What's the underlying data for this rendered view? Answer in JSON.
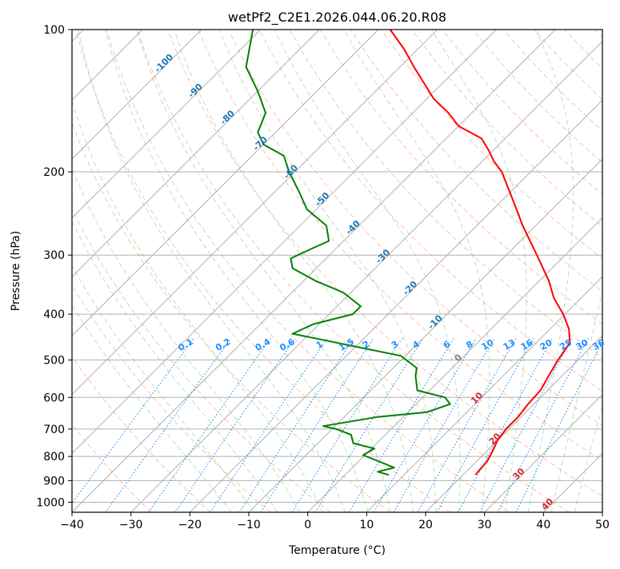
{
  "chart_data": {
    "type": "skew-t",
    "title": "wetPf2_C2E1.2026.044.06.20.R08",
    "xlabel": "Temperature (°C)",
    "ylabel": "Pressure (hPa)",
    "xlim": [
      -40,
      50
    ],
    "ylim_hpa": [
      1050,
      100
    ],
    "x_ticks": [
      -40,
      -30,
      -20,
      -10,
      0,
      10,
      20,
      30,
      40,
      50
    ],
    "x_tick_labels": [
      "−40",
      "−30",
      "−20",
      "−10",
      "0",
      "10",
      "20",
      "30",
      "40",
      "50"
    ],
    "y_ticks": [
      100,
      200,
      300,
      400,
      500,
      600,
      700,
      800,
      900,
      1000
    ],
    "y_tick_labels": [
      "100",
      "200",
      "300",
      "400",
      "500",
      "600",
      "700",
      "800",
      "900",
      "1000"
    ],
    "grid": true,
    "series": [
      {
        "name": "temperature",
        "color": "#ff0000",
        "points_p_t": [
          [
            875,
            22.1
          ],
          [
            860,
            22.0
          ],
          [
            820,
            21.8
          ],
          [
            780,
            21.0
          ],
          [
            740,
            20.0
          ],
          [
            700,
            19.5
          ],
          [
            660,
            19.5
          ],
          [
            620,
            19.0
          ],
          [
            580,
            18.8
          ],
          [
            540,
            17.7
          ],
          [
            500,
            16.6
          ],
          [
            460,
            15.7
          ],
          [
            430,
            13.2
          ],
          [
            400,
            9.7
          ],
          [
            370,
            5.4
          ],
          [
            340,
            1.6
          ],
          [
            300,
            -4.8
          ],
          [
            260,
            -12.2
          ],
          [
            230,
            -18.1
          ],
          [
            200,
            -24.9
          ],
          [
            190,
            -28.0
          ],
          [
            180,
            -30.8
          ],
          [
            170,
            -34.0
          ],
          [
            160,
            -40.0
          ],
          [
            150,
            -44.0
          ],
          [
            140,
            -48.9
          ],
          [
            120,
            -57.6
          ],
          [
            110,
            -62.3
          ],
          [
            100,
            -68.0
          ]
        ]
      },
      {
        "name": "dewpoint",
        "color": "#008000",
        "points_p_t": [
          [
            875,
            7.4
          ],
          [
            862,
            5.0
          ],
          [
            845,
            7.1
          ],
          [
            820,
            3.5
          ],
          [
            795,
            -0.3
          ],
          [
            770,
            0.5
          ],
          [
            750,
            -4.0
          ],
          [
            720,
            -5.8
          ],
          [
            700,
            -9.3
          ],
          [
            690,
            -12.0
          ],
          [
            660,
            -4.3
          ],
          [
            645,
            3.2
          ],
          [
            620,
            5.8
          ],
          [
            600,
            3.8
          ],
          [
            580,
            -2.1
          ],
          [
            540,
            -4.9
          ],
          [
            520,
            -6.0
          ],
          [
            490,
            -10.8
          ],
          [
            470,
            -19.4
          ],
          [
            455,
            -26.0
          ],
          [
            440,
            -32.9
          ],
          [
            420,
            -31.0
          ],
          [
            400,
            -26.0
          ],
          [
            385,
            -26.0
          ],
          [
            360,
            -31.3
          ],
          [
            340,
            -38.0
          ],
          [
            320,
            -44.0
          ],
          [
            305,
            -46.0
          ],
          [
            290,
            -44.0
          ],
          [
            280,
            -42.5
          ],
          [
            260,
            -45.5
          ],
          [
            240,
            -51.6
          ],
          [
            220,
            -56.0
          ],
          [
            200,
            -61.0
          ],
          [
            185,
            -64.6
          ],
          [
            175,
            -70.0
          ],
          [
            165,
            -73.0
          ],
          [
            150,
            -75.0
          ],
          [
            135,
            -80.0
          ],
          [
            120,
            -86.1
          ],
          [
            100,
            -91.3
          ]
        ]
      }
    ],
    "isotherm_labels": [
      "-100",
      "-90",
      "-80",
      "-70",
      "-60",
      "-50",
      "-40",
      "-30",
      "-20",
      "-10",
      "0",
      "10",
      "20",
      "30",
      "40"
    ],
    "mixing_ratio_labels": [
      "0.1",
      "0.2",
      "0.4",
      "0.6",
      "1",
      "1.5",
      "2",
      "3",
      "4",
      "6",
      "8",
      "10",
      "13",
      "16",
      "20",
      "25",
      "30",
      "36"
    ],
    "colors": {
      "isotherm_cold": "#1f77b4",
      "isotherm_warm": "#d62728",
      "isotherm_zero": "#7f7f7f",
      "mixing_ratio": "#1e90ff",
      "dry_adiabat": "#ff8c69",
      "moist_adiabat": "#7cc07c",
      "grid": "#b0b0b0"
    }
  }
}
